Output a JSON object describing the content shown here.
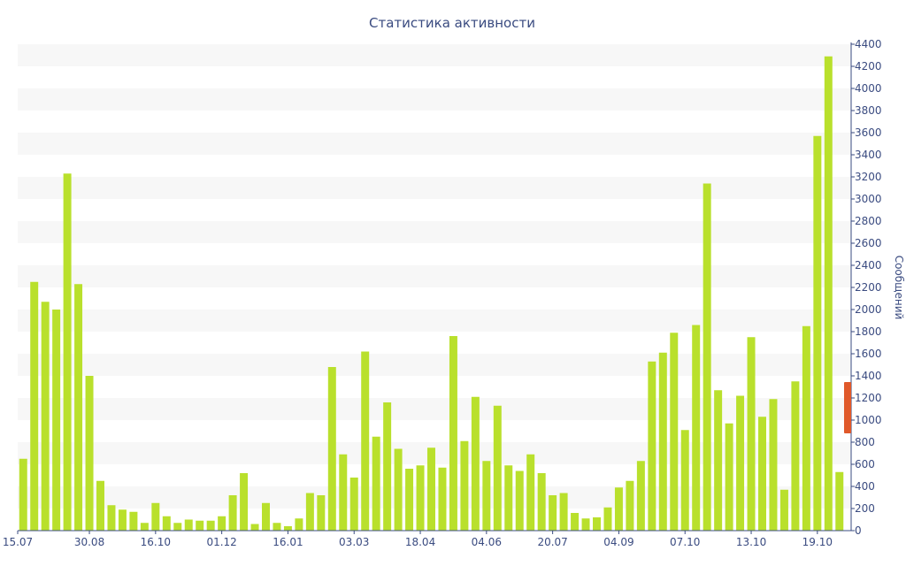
{
  "chart_data": {
    "type": "bar",
    "title": "Статистика активности",
    "ylabel": "Сообщений",
    "xlabel": "",
    "ylim": [
      0,
      4400
    ],
    "y_ticks": [
      0,
      200,
      400,
      600,
      800,
      1000,
      1200,
      1400,
      1600,
      1800,
      2000,
      2200,
      2400,
      2600,
      2800,
      3000,
      3200,
      3400,
      3600,
      3800,
      4000,
      4200,
      4400
    ],
    "x_tick_labels": [
      {
        "index": 0,
        "label": "15.07"
      },
      {
        "index": 6,
        "label": "30.08"
      },
      {
        "index": 12,
        "label": "16.10"
      },
      {
        "index": 18,
        "label": "01.12"
      },
      {
        "index": 24,
        "label": "16.01"
      },
      {
        "index": 30,
        "label": "03.03"
      },
      {
        "index": 36,
        "label": "18.04"
      },
      {
        "index": 42,
        "label": "04.06"
      },
      {
        "index": 48,
        "label": "20.07"
      },
      {
        "index": 54,
        "label": "04.09"
      },
      {
        "index": 60,
        "label": "07.10"
      },
      {
        "index": 66,
        "label": "13.10"
      },
      {
        "index": 72,
        "label": "19.10"
      }
    ],
    "values": [
      650,
      2250,
      2070,
      2000,
      3230,
      2230,
      1400,
      450,
      230,
      190,
      170,
      70,
      250,
      130,
      70,
      100,
      90,
      90,
      130,
      320,
      520,
      60,
      250,
      70,
      40,
      110,
      340,
      320,
      1480,
      690,
      480,
      1620,
      850,
      1160,
      740,
      560,
      590,
      750,
      570,
      1760,
      810,
      1210,
      630,
      1130,
      590,
      540,
      690,
      520,
      320,
      340,
      160,
      110,
      120,
      210,
      390,
      450,
      630,
      1530,
      1610,
      1790,
      910,
      1860,
      3140,
      1270,
      970,
      1220,
      1750,
      1030,
      1190,
      370,
      1350,
      1850,
      3570,
      4290,
      530
    ],
    "colors": {
      "bar": "#b9e02c",
      "axis": "#3a4b80",
      "band": "#f7f7f7",
      "scrollbar": "#e0592a"
    },
    "grid": "alternating-bands",
    "legend": "none"
  }
}
